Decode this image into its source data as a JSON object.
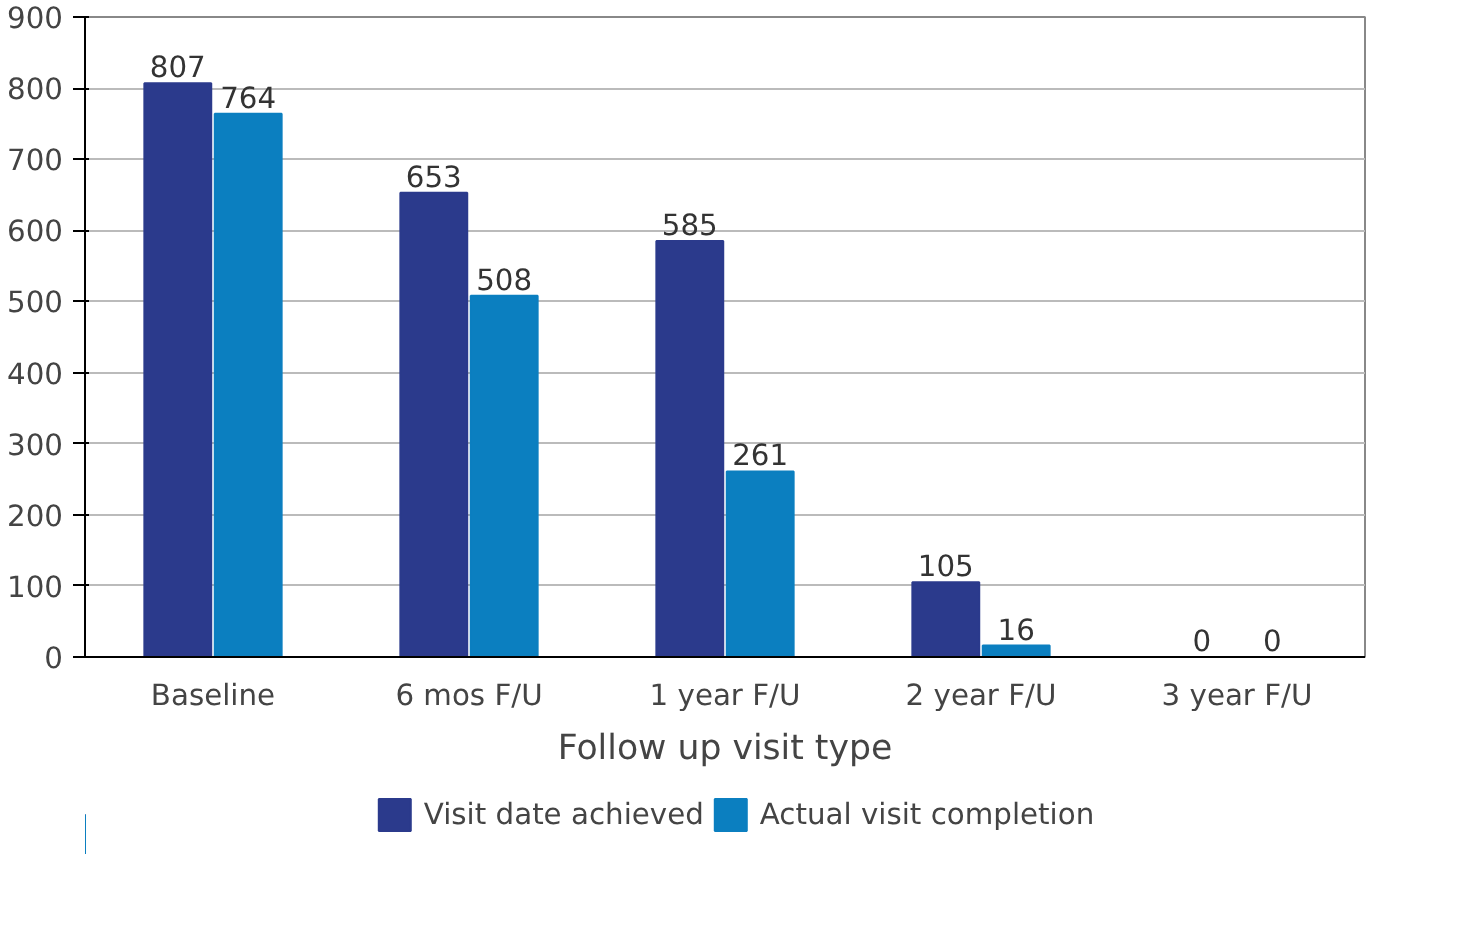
{
  "chart_data": {
    "type": "bar",
    "xlabel": "Follow up visit type",
    "categories": [
      "Baseline",
      "6 mos F/U",
      "1 year F/U",
      "2 year F/U",
      "3 year F/U"
    ],
    "series": [
      {
        "name": "Visit date achieved",
        "color": "#2b3a8c",
        "values": [
          807,
          653,
          585,
          105,
          0
        ]
      },
      {
        "name": "Actual visit completion",
        "color": "#0b7fc0",
        "values": [
          764,
          508,
          261,
          16,
          0
        ]
      }
    ],
    "ylim": [
      0,
      900
    ],
    "yticks": [
      0,
      100,
      200,
      300,
      400,
      500,
      600,
      700,
      800,
      900
    ],
    "grid": "y",
    "legend": "bottom",
    "data_labels": true
  }
}
